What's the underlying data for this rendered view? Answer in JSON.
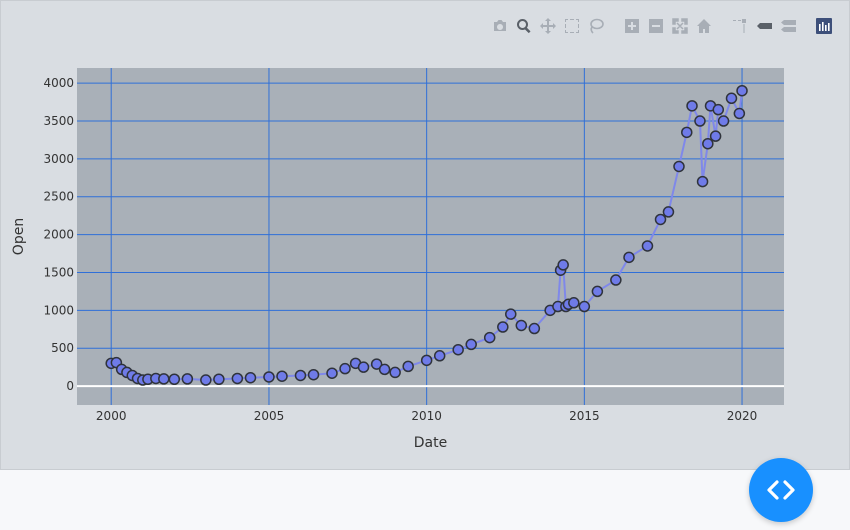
{
  "colors": {
    "plot_bg": "#a9b0b8",
    "grid": "#2f6fd8",
    "zero_line": "#ffffff",
    "marker_fill": "#6f7be8",
    "marker_edge": "#2f333b",
    "line": "#7f88ea",
    "fab": "#1890ff"
  },
  "modebar": [
    {
      "name": "camera-icon",
      "label": "Download plot as a png"
    },
    {
      "name": "zoom-icon",
      "label": "Zoom"
    },
    {
      "name": "pan-icon",
      "label": "Pan"
    },
    {
      "name": "box-select-icon",
      "label": "Box Select"
    },
    {
      "name": "lasso-select-icon",
      "label": "Lasso Select"
    },
    {
      "name": "zoom-in-icon",
      "label": "Zoom in"
    },
    {
      "name": "zoom-out-icon",
      "label": "Zoom out"
    },
    {
      "name": "autoscale-icon",
      "label": "Autoscale"
    },
    {
      "name": "reset-axes-icon",
      "label": "Reset axes"
    },
    {
      "name": "spike-lines-icon",
      "label": "Toggle Spike Lines"
    },
    {
      "name": "hover-closest-icon",
      "label": "Show closest data on hover"
    },
    {
      "name": "hover-compare-icon",
      "label": "Compare data on hover"
    },
    {
      "name": "plotly-logo-icon",
      "label": "Produced with Plotly"
    }
  ],
  "chart_data": {
    "type": "line",
    "title": "",
    "xlabel": "Date",
    "ylabel": "Open",
    "x_range": [
      "1998-12-01",
      "2021-05-01"
    ],
    "y_range": [
      -250,
      4200
    ],
    "x_ticks": [
      {
        "value": "2000-01-01",
        "label": "2000"
      },
      {
        "value": "2005-01-01",
        "label": "2005"
      },
      {
        "value": "2010-01-01",
        "label": "2010"
      },
      {
        "value": "2015-01-01",
        "label": "2015"
      },
      {
        "value": "2020-01-01",
        "label": "2020"
      }
    ],
    "y_ticks": [
      0,
      500,
      1000,
      1500,
      2000,
      2500,
      3000,
      3500,
      4000
    ],
    "grid": true,
    "mode": "lines+markers",
    "series": [
      {
        "x": [
          "2000-01-01",
          "2000-03-01",
          "2000-05-01",
          "2000-07-01",
          "2000-09-01",
          "2000-11-01",
          "2001-01-01",
          "2001-03-01",
          "2001-06-01",
          "2001-09-01",
          "2002-01-01",
          "2002-06-01",
          "2003-01-01",
          "2003-06-01",
          "2004-01-01",
          "2004-06-01",
          "2005-01-01",
          "2005-06-01",
          "2006-01-01",
          "2006-06-01",
          "2007-01-01",
          "2007-06-01",
          "2007-10-01",
          "2008-01-01",
          "2008-06-01",
          "2008-09-01",
          "2009-01-01",
          "2009-06-01",
          "2010-01-01",
          "2010-06-01",
          "2011-01-01",
          "2011-06-01",
          "2012-01-01",
          "2012-06-01",
          "2012-09-01",
          "2013-01-01",
          "2013-06-01",
          "2013-12-01",
          "2014-03-01",
          "2014-04-01",
          "2014-05-01",
          "2014-06-01",
          "2014-07-01",
          "2014-09-01",
          "2015-01-01",
          "2015-06-01",
          "2016-01-01",
          "2016-06-01",
          "2017-01-01",
          "2017-06-01",
          "2017-09-01",
          "2018-01-01",
          "2018-04-01",
          "2018-06-01",
          "2018-09-01",
          "2018-10-01",
          "2018-12-01",
          "2019-01-01",
          "2019-03-01",
          "2019-04-01",
          "2019-06-01",
          "2019-09-01",
          "2019-12-01",
          "2020-01-01"
        ],
        "y": [
          300,
          310,
          220,
          180,
          140,
          100,
          80,
          90,
          100,
          95,
          90,
          95,
          80,
          90,
          100,
          110,
          120,
          130,
          140,
          150,
          170,
          230,
          300,
          250,
          290,
          220,
          180,
          260,
          340,
          400,
          480,
          550,
          640,
          780,
          950,
          800,
          760,
          1000,
          1050,
          1530,
          1600,
          1050,
          1080,
          1100,
          1050,
          1250,
          1400,
          1700,
          1850,
          2200,
          2300,
          2900,
          3350,
          3700,
          3500,
          2700,
          3200,
          3700,
          3300,
          3650,
          3500,
          3800,
          3600,
          3900
        ]
      }
    ]
  }
}
